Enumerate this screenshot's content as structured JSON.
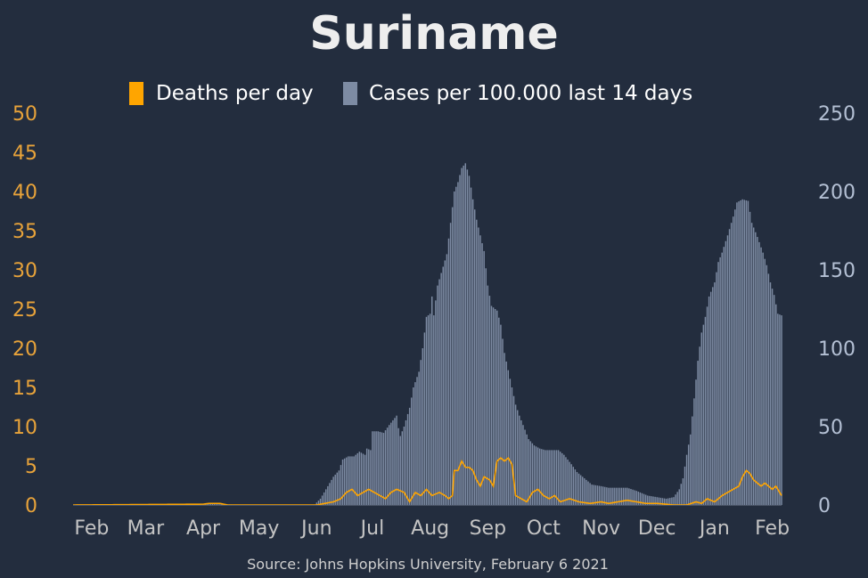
{
  "chart_data": {
    "type": "bar",
    "title": "Suriname",
    "source": "Source: Johns Hopkins University, February 6 2021",
    "legend": {
      "placement": "top-center"
    },
    "grid": false,
    "colors": {
      "background": "#232d3e",
      "deaths": "#ffa500",
      "cases": "#7d8ba3",
      "left_axis_text": "#e8a33a",
      "right_axis_text": "#b4c0d4",
      "x_axis_text": "#c4c4c4",
      "title": "#eeeeee"
    },
    "x_range": [
      "2020-01-22",
      "2021-02-06"
    ],
    "x_ticks": [
      {
        "label": "Feb",
        "date": "2020-02-01"
      },
      {
        "label": "Mar",
        "date": "2020-03-01"
      },
      {
        "label": "Apr",
        "date": "2020-04-01"
      },
      {
        "label": "May",
        "date": "2020-05-01"
      },
      {
        "label": "Jun",
        "date": "2020-06-01"
      },
      {
        "label": "Jul",
        "date": "2020-07-01"
      },
      {
        "label": "Aug",
        "date": "2020-08-01"
      },
      {
        "label": "Sep",
        "date": "2020-09-01"
      },
      {
        "label": "Oct",
        "date": "2020-10-01"
      },
      {
        "label": "Nov",
        "date": "2020-11-01"
      },
      {
        "label": "Dec",
        "date": "2020-12-01"
      },
      {
        "label": "Jan",
        "date": "2021-01-01"
      },
      {
        "label": "Feb",
        "date": "2021-02-01"
      }
    ],
    "y_left": {
      "label": "",
      "range": [
        0,
        50
      ],
      "ticks": [
        "0",
        "5",
        "10",
        "15",
        "20",
        "25",
        "30",
        "35",
        "40",
        "45",
        "50"
      ]
    },
    "y_right": {
      "label": "",
      "range": [
        0,
        250
      ],
      "ticks": [
        "0",
        "50",
        "100",
        "150",
        "200",
        "250"
      ]
    },
    "series": [
      {
        "name": "Cases per 100.000 last 14 days",
        "type": "bar",
        "axis": "right",
        "points": [
          [
            "2020-03-15",
            0
          ],
          [
            "2020-03-20",
            0.6
          ],
          [
            "2020-04-01",
            0.7
          ],
          [
            "2020-04-10",
            0.5
          ],
          [
            "2020-04-20",
            0.2
          ],
          [
            "2020-05-01",
            0
          ],
          [
            "2020-05-31",
            0.3
          ],
          [
            "2020-06-03",
            4
          ],
          [
            "2020-06-06",
            10
          ],
          [
            "2020-06-10",
            18
          ],
          [
            "2020-06-13",
            22
          ],
          [
            "2020-06-15",
            29
          ],
          [
            "2020-06-18",
            31
          ],
          [
            "2020-06-21",
            31
          ],
          [
            "2020-06-24",
            34
          ],
          [
            "2020-06-27",
            32
          ],
          [
            "2020-06-28",
            36
          ],
          [
            "2020-06-30",
            35
          ],
          [
            "2020-07-01",
            47
          ],
          [
            "2020-07-04",
            47
          ],
          [
            "2020-07-07",
            46
          ],
          [
            "2020-07-10",
            51
          ],
          [
            "2020-07-12",
            54
          ],
          [
            "2020-07-14",
            57
          ],
          [
            "2020-07-15",
            49
          ],
          [
            "2020-07-16",
            44
          ],
          [
            "2020-07-18",
            50
          ],
          [
            "2020-07-21",
            62
          ],
          [
            "2020-07-23",
            75
          ],
          [
            "2020-07-26",
            85
          ],
          [
            "2020-07-28",
            100
          ],
          [
            "2020-07-30",
            120
          ],
          [
            "2020-08-01",
            122
          ],
          [
            "2020-08-02",
            133
          ],
          [
            "2020-08-03",
            121
          ],
          [
            "2020-08-05",
            140
          ],
          [
            "2020-08-07",
            148
          ],
          [
            "2020-08-10",
            160
          ],
          [
            "2020-08-12",
            180
          ],
          [
            "2020-08-14",
            200
          ],
          [
            "2020-08-16",
            206
          ],
          [
            "2020-08-18",
            215
          ],
          [
            "2020-08-20",
            218
          ],
          [
            "2020-08-22",
            210
          ],
          [
            "2020-08-24",
            195
          ],
          [
            "2020-08-26",
            182
          ],
          [
            "2020-08-28",
            172
          ],
          [
            "2020-08-30",
            162
          ],
          [
            "2020-09-01",
            140
          ],
          [
            "2020-09-03",
            127
          ],
          [
            "2020-09-06",
            124
          ],
          [
            "2020-09-08",
            115
          ],
          [
            "2020-09-10",
            97
          ],
          [
            "2020-09-12",
            86
          ],
          [
            "2020-09-14",
            75
          ],
          [
            "2020-09-16",
            64
          ],
          [
            "2020-09-18",
            57
          ],
          [
            "2020-09-21",
            48
          ],
          [
            "2020-09-23",
            42
          ],
          [
            "2020-09-26",
            38
          ],
          [
            "2020-09-29",
            36
          ],
          [
            "2020-10-02",
            35
          ],
          [
            "2020-10-06",
            35
          ],
          [
            "2020-10-09",
            35
          ],
          [
            "2020-10-12",
            32
          ],
          [
            "2020-10-16",
            26
          ],
          [
            "2020-10-19",
            21
          ],
          [
            "2020-10-23",
            17
          ],
          [
            "2020-10-27",
            13
          ],
          [
            "2020-11-01",
            12
          ],
          [
            "2020-11-05",
            11
          ],
          [
            "2020-11-09",
            11
          ],
          [
            "2020-11-15",
            11
          ],
          [
            "2020-11-20",
            9
          ],
          [
            "2020-11-26",
            6
          ],
          [
            "2020-12-01",
            5
          ],
          [
            "2020-12-06",
            4
          ],
          [
            "2020-12-10",
            5
          ],
          [
            "2020-12-13",
            10
          ],
          [
            "2020-12-15",
            17
          ],
          [
            "2020-12-17",
            32
          ],
          [
            "2020-12-19",
            45
          ],
          [
            "2020-12-21",
            68
          ],
          [
            "2020-12-23",
            92
          ],
          [
            "2020-12-25",
            110
          ],
          [
            "2020-12-27",
            120
          ],
          [
            "2020-12-29",
            133
          ],
          [
            "2021-01-01",
            142
          ],
          [
            "2021-01-03",
            155
          ],
          [
            "2021-01-05",
            161
          ],
          [
            "2021-01-08",
            172
          ],
          [
            "2021-01-11",
            184
          ],
          [
            "2021-01-13",
            193
          ],
          [
            "2021-01-16",
            195
          ],
          [
            "2021-01-19",
            194
          ],
          [
            "2021-01-21",
            180
          ],
          [
            "2021-01-24",
            171
          ],
          [
            "2021-01-27",
            161
          ],
          [
            "2021-01-29",
            153
          ],
          [
            "2021-01-31",
            142
          ],
          [
            "2021-02-02",
            134
          ],
          [
            "2021-02-04",
            122
          ],
          [
            "2021-02-06",
            121
          ]
        ]
      },
      {
        "name": "Deaths per day",
        "type": "line",
        "axis": "left",
        "points": [
          [
            "2020-01-22",
            0
          ],
          [
            "2020-04-01",
            0.1
          ],
          [
            "2020-04-04",
            0.2
          ],
          [
            "2020-04-10",
            0.2
          ],
          [
            "2020-04-14",
            0
          ],
          [
            "2020-06-01",
            0
          ],
          [
            "2020-06-10",
            0.4
          ],
          [
            "2020-06-14",
            0.8
          ],
          [
            "2020-06-17",
            1.6
          ],
          [
            "2020-06-20",
            2
          ],
          [
            "2020-06-23",
            1.2
          ],
          [
            "2020-06-26",
            1.6
          ],
          [
            "2020-06-29",
            2
          ],
          [
            "2020-07-02",
            1.6
          ],
          [
            "2020-07-05",
            1.2
          ],
          [
            "2020-07-08",
            0.8
          ],
          [
            "2020-07-11",
            1.6
          ],
          [
            "2020-07-14",
            2
          ],
          [
            "2020-07-18",
            1.6
          ],
          [
            "2020-07-21",
            0.4
          ],
          [
            "2020-07-24",
            1.6
          ],
          [
            "2020-07-27",
            1.2
          ],
          [
            "2020-07-30",
            2
          ],
          [
            "2020-08-02",
            1.2
          ],
          [
            "2020-08-06",
            1.6
          ],
          [
            "2020-08-09",
            1.2
          ],
          [
            "2020-08-11",
            0.8
          ],
          [
            "2020-08-13",
            1.2
          ],
          [
            "2020-08-14",
            4.4
          ],
          [
            "2020-08-16",
            4.4
          ],
          [
            "2020-08-18",
            5.6
          ],
          [
            "2020-08-20",
            4.8
          ],
          [
            "2020-08-22",
            4.8
          ],
          [
            "2020-08-24",
            4.4
          ],
          [
            "2020-08-26",
            3.2
          ],
          [
            "2020-08-28",
            2.4
          ],
          [
            "2020-08-30",
            3.6
          ],
          [
            "2020-09-02",
            3.2
          ],
          [
            "2020-09-04",
            2.4
          ],
          [
            "2020-09-06",
            5.6
          ],
          [
            "2020-09-08",
            6
          ],
          [
            "2020-09-10",
            5.6
          ],
          [
            "2020-09-12",
            6
          ],
          [
            "2020-09-14",
            5.2
          ],
          [
            "2020-09-16",
            1.2
          ],
          [
            "2020-09-19",
            0.8
          ],
          [
            "2020-09-22",
            0.4
          ],
          [
            "2020-09-25",
            1.6
          ],
          [
            "2020-09-28",
            2
          ],
          [
            "2020-10-01",
            1.2
          ],
          [
            "2020-10-04",
            0.8
          ],
          [
            "2020-10-07",
            1.2
          ],
          [
            "2020-10-10",
            0.4
          ],
          [
            "2020-10-15",
            0.8
          ],
          [
            "2020-10-20",
            0.4
          ],
          [
            "2020-10-26",
            0.2
          ],
          [
            "2020-11-01",
            0.4
          ],
          [
            "2020-11-05",
            0.2
          ],
          [
            "2020-11-10",
            0.4
          ],
          [
            "2020-11-15",
            0.6
          ],
          [
            "2020-11-20",
            0.4
          ],
          [
            "2020-11-25",
            0.2
          ],
          [
            "2020-12-01",
            0.2
          ],
          [
            "2020-12-10",
            0
          ],
          [
            "2020-12-17",
            0
          ],
          [
            "2020-12-22",
            0.4
          ],
          [
            "2020-12-25",
            0.2
          ],
          [
            "2020-12-28",
            0.8
          ],
          [
            "2021-01-01",
            0.4
          ],
          [
            "2021-01-05",
            1.2
          ],
          [
            "2021-01-08",
            1.6
          ],
          [
            "2021-01-11",
            2
          ],
          [
            "2021-01-14",
            2.4
          ],
          [
            "2021-01-16",
            3.6
          ],
          [
            "2021-01-18",
            4.4
          ],
          [
            "2021-01-20",
            4
          ],
          [
            "2021-01-22",
            3.2
          ],
          [
            "2021-01-24",
            2.8
          ],
          [
            "2021-01-26",
            2.4
          ],
          [
            "2021-01-28",
            2.8
          ],
          [
            "2021-01-30",
            2.4
          ],
          [
            "2021-02-01",
            2
          ],
          [
            "2021-02-03",
            2.4
          ],
          [
            "2021-02-05",
            1.6
          ],
          [
            "2021-02-06",
            1.2
          ]
        ]
      }
    ]
  }
}
